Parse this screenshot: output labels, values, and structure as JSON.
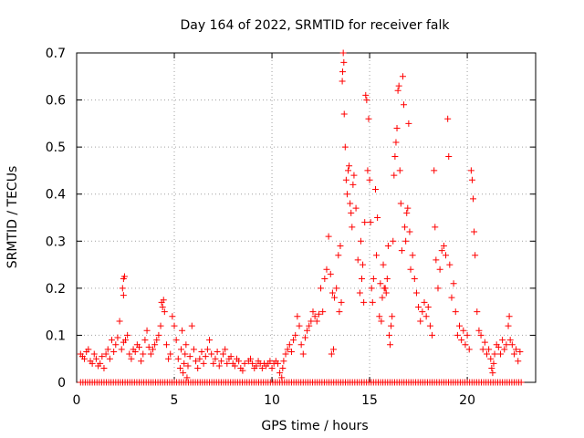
{
  "chart_data": {
    "type": "scatter",
    "title": "Day 164 of 2022, SRMTID for receiver falk",
    "xlabel": "GPS time / hours",
    "ylabel": "SRMTID / TECUs",
    "xlim": [
      0,
      23.5
    ],
    "ylim": [
      0,
      0.7
    ],
    "xticks": [
      0,
      5,
      10,
      15,
      20
    ],
    "xtick_labels": [
      "0",
      "5",
      "10",
      "15",
      "20"
    ],
    "yticks": [
      0,
      0.1,
      0.2,
      0.3,
      0.4,
      0.5,
      0.6,
      0.7
    ],
    "ytick_labels": [
      "0",
      "0.1",
      "0.2",
      "0.3",
      "0.4",
      "0.5",
      "0.6",
      "0.7"
    ],
    "grid": true,
    "marker": "+",
    "color": "#ff0000",
    "series": [
      {
        "name": "SRMTID",
        "points": [
          [
            0.2,
            0.06
          ],
          [
            0.3,
            0.055
          ],
          [
            0.4,
            0.05
          ],
          [
            0.5,
            0.065
          ],
          [
            0.6,
            0.07
          ],
          [
            0.7,
            0.045
          ],
          [
            0.8,
            0.04
          ],
          [
            0.9,
            0.06
          ],
          [
            1.0,
            0.05
          ],
          [
            1.1,
            0.035
          ],
          [
            1.2,
            0.04
          ],
          [
            1.3,
            0.055
          ],
          [
            1.4,
            0.03
          ],
          [
            1.5,
            0.06
          ],
          [
            1.6,
            0.07
          ],
          [
            1.7,
            0.05
          ],
          [
            1.8,
            0.09
          ],
          [
            1.9,
            0.065
          ],
          [
            2.0,
            0.08
          ],
          [
            2.1,
            0.095
          ],
          [
            2.2,
            0.13
          ],
          [
            2.3,
            0.07
          ],
          [
            2.4,
            0.085
          ],
          [
            2.5,
            0.09
          ],
          [
            2.6,
            0.1
          ],
          [
            2.35,
            0.2
          ],
          [
            2.4,
            0.22
          ],
          [
            2.4,
            0.185
          ],
          [
            2.45,
            0.225
          ],
          [
            2.7,
            0.06
          ],
          [
            2.8,
            0.05
          ],
          [
            2.9,
            0.07
          ],
          [
            3.0,
            0.065
          ],
          [
            3.1,
            0.08
          ],
          [
            3.2,
            0.075
          ],
          [
            3.3,
            0.045
          ],
          [
            3.4,
            0.06
          ],
          [
            3.5,
            0.09
          ],
          [
            3.6,
            0.11
          ],
          [
            3.7,
            0.075
          ],
          [
            3.8,
            0.06
          ],
          [
            3.9,
            0.07
          ],
          [
            4.0,
            0.08
          ],
          [
            4.1,
            0.09
          ],
          [
            4.2,
            0.1
          ],
          [
            4.3,
            0.12
          ],
          [
            4.35,
            0.17
          ],
          [
            4.4,
            0.16
          ],
          [
            4.45,
            0.175
          ],
          [
            4.5,
            0.15
          ],
          [
            4.6,
            0.08
          ],
          [
            4.7,
            0.05
          ],
          [
            4.8,
            0.06
          ],
          [
            4.9,
            0.14
          ],
          [
            5.0,
            0.12
          ],
          [
            5.1,
            0.09
          ],
          [
            5.2,
            0.05
          ],
          [
            5.3,
            0.03
          ],
          [
            5.35,
            0.07
          ],
          [
            5.4,
            0.11
          ],
          [
            5.45,
            0.02
          ],
          [
            5.5,
            0.04
          ],
          [
            5.55,
            0.06
          ],
          [
            5.6,
            0.08
          ],
          [
            5.65,
            0.01
          ],
          [
            5.7,
            0.035
          ],
          [
            5.8,
            0.055
          ],
          [
            5.9,
            0.12
          ],
          [
            6.0,
            0.07
          ],
          [
            6.1,
            0.045
          ],
          [
            6.2,
            0.03
          ],
          [
            6.3,
            0.05
          ],
          [
            6.4,
            0.065
          ],
          [
            6.5,
            0.04
          ],
          [
            6.6,
            0.055
          ],
          [
            6.7,
            0.07
          ],
          [
            6.8,
            0.09
          ],
          [
            6.9,
            0.06
          ],
          [
            7.0,
            0.04
          ],
          [
            7.1,
            0.05
          ],
          [
            7.2,
            0.065
          ],
          [
            7.3,
            0.035
          ],
          [
            7.4,
            0.045
          ],
          [
            7.5,
            0.06
          ],
          [
            7.6,
            0.07
          ],
          [
            7.7,
            0.04
          ],
          [
            7.8,
            0.05
          ],
          [
            7.9,
            0.055
          ],
          [
            8.0,
            0.04
          ],
          [
            8.1,
            0.035
          ],
          [
            8.2,
            0.05
          ],
          [
            8.3,
            0.045
          ],
          [
            8.4,
            0.03
          ],
          [
            8.5,
            0.025
          ],
          [
            8.6,
            0.04
          ],
          [
            8.8,
            0.045
          ],
          [
            8.9,
            0.05
          ],
          [
            9.0,
            0.04
          ],
          [
            9.1,
            0.03
          ],
          [
            9.2,
            0.035
          ],
          [
            9.3,
            0.045
          ],
          [
            9.4,
            0.04
          ],
          [
            9.5,
            0.03
          ],
          [
            9.6,
            0.04
          ],
          [
            9.7,
            0.035
          ],
          [
            9.8,
            0.04
          ],
          [
            9.9,
            0.045
          ],
          [
            10.0,
            0.03
          ],
          [
            10.1,
            0.04
          ],
          [
            10.2,
            0.045
          ],
          [
            10.3,
            0.04
          ],
          [
            10.4,
            0.02
          ],
          [
            10.5,
            0.01
          ],
          [
            10.55,
            0.03
          ],
          [
            10.6,
            0.045
          ],
          [
            10.7,
            0.06
          ],
          [
            10.8,
            0.07
          ],
          [
            10.9,
            0.08
          ],
          [
            11.0,
            0.065
          ],
          [
            11.1,
            0.09
          ],
          [
            11.2,
            0.1
          ],
          [
            11.3,
            0.14
          ],
          [
            11.4,
            0.12
          ],
          [
            11.5,
            0.08
          ],
          [
            11.6,
            0.06
          ],
          [
            11.7,
            0.095
          ],
          [
            11.8,
            0.11
          ],
          [
            11.9,
            0.12
          ],
          [
            12.0,
            0.13
          ],
          [
            12.1,
            0.15
          ],
          [
            12.2,
            0.14
          ],
          [
            12.3,
            0.13
          ],
          [
            12.4,
            0.145
          ],
          [
            12.5,
            0.2
          ],
          [
            12.6,
            0.15
          ],
          [
            12.7,
            0.22
          ],
          [
            12.8,
            0.24
          ],
          [
            12.9,
            0.31
          ],
          [
            13.0,
            0.23
          ],
          [
            13.05,
            0.06
          ],
          [
            13.1,
            0.19
          ],
          [
            13.15,
            0.07
          ],
          [
            13.2,
            0.18
          ],
          [
            13.3,
            0.2
          ],
          [
            13.4,
            0.27
          ],
          [
            13.45,
            0.15
          ],
          [
            13.5,
            0.29
          ],
          [
            13.55,
            0.17
          ],
          [
            13.6,
            0.64
          ],
          [
            13.62,
            0.66
          ],
          [
            13.65,
            0.7
          ],
          [
            13.68,
            0.68
          ],
          [
            13.7,
            0.57
          ],
          [
            13.75,
            0.5
          ],
          [
            13.8,
            0.43
          ],
          [
            13.85,
            0.4
          ],
          [
            13.9,
            0.45
          ],
          [
            13.95,
            0.46
          ],
          [
            14.0,
            0.38
          ],
          [
            14.05,
            0.36
          ],
          [
            14.1,
            0.33
          ],
          [
            14.15,
            0.42
          ],
          [
            14.2,
            0.44
          ],
          [
            14.3,
            0.37
          ],
          [
            14.4,
            0.26
          ],
          [
            14.5,
            0.19
          ],
          [
            14.55,
            0.3
          ],
          [
            14.6,
            0.22
          ],
          [
            14.65,
            0.25
          ],
          [
            14.7,
            0.17
          ],
          [
            14.75,
            0.34
          ],
          [
            14.8,
            0.61
          ],
          [
            14.85,
            0.6
          ],
          [
            14.9,
            0.45
          ],
          [
            14.95,
            0.56
          ],
          [
            15.0,
            0.43
          ],
          [
            15.05,
            0.34
          ],
          [
            15.1,
            0.2
          ],
          [
            15.15,
            0.17
          ],
          [
            15.2,
            0.22
          ],
          [
            15.3,
            0.41
          ],
          [
            15.35,
            0.27
          ],
          [
            15.4,
            0.35
          ],
          [
            15.5,
            0.14
          ],
          [
            15.55,
            0.21
          ],
          [
            15.6,
            0.13
          ],
          [
            15.65,
            0.18
          ],
          [
            15.7,
            0.25
          ],
          [
            15.75,
            0.2
          ],
          [
            15.8,
            0.2
          ],
          [
            15.85,
            0.19
          ],
          [
            15.9,
            0.22
          ],
          [
            15.95,
            0.29
          ],
          [
            16.0,
            0.1
          ],
          [
            16.05,
            0.08
          ],
          [
            16.1,
            0.12
          ],
          [
            16.15,
            0.14
          ],
          [
            16.2,
            0.3
          ],
          [
            16.25,
            0.44
          ],
          [
            16.3,
            0.48
          ],
          [
            16.35,
            0.51
          ],
          [
            16.4,
            0.54
          ],
          [
            16.45,
            0.62
          ],
          [
            16.5,
            0.63
          ],
          [
            16.55,
            0.45
          ],
          [
            16.6,
            0.38
          ],
          [
            16.65,
            0.28
          ],
          [
            16.7,
            0.65
          ],
          [
            16.75,
            0.59
          ],
          [
            16.8,
            0.33
          ],
          [
            16.85,
            0.3
          ],
          [
            16.9,
            0.36
          ],
          [
            16.95,
            0.37
          ],
          [
            17.0,
            0.55
          ],
          [
            17.05,
            0.32
          ],
          [
            17.1,
            0.24
          ],
          [
            17.2,
            0.27
          ],
          [
            17.3,
            0.22
          ],
          [
            17.4,
            0.19
          ],
          [
            17.5,
            0.16
          ],
          [
            17.6,
            0.13
          ],
          [
            17.7,
            0.15
          ],
          [
            17.8,
            0.17
          ],
          [
            17.9,
            0.14
          ],
          [
            18.0,
            0.16
          ],
          [
            18.1,
            0.12
          ],
          [
            18.2,
            0.1
          ],
          [
            18.3,
            0.45
          ],
          [
            18.35,
            0.33
          ],
          [
            18.4,
            0.26
          ],
          [
            18.5,
            0.2
          ],
          [
            18.6,
            0.24
          ],
          [
            18.7,
            0.28
          ],
          [
            18.8,
            0.29
          ],
          [
            18.9,
            0.27
          ],
          [
            19.0,
            0.56
          ],
          [
            19.05,
            0.48
          ],
          [
            19.1,
            0.25
          ],
          [
            19.2,
            0.18
          ],
          [
            19.3,
            0.21
          ],
          [
            19.4,
            0.15
          ],
          [
            19.5,
            0.1
          ],
          [
            19.6,
            0.12
          ],
          [
            19.7,
            0.09
          ],
          [
            19.8,
            0.11
          ],
          [
            19.9,
            0.08
          ],
          [
            20.0,
            0.1
          ],
          [
            20.1,
            0.07
          ],
          [
            20.2,
            0.45
          ],
          [
            20.25,
            0.43
          ],
          [
            20.3,
            0.39
          ],
          [
            20.35,
            0.32
          ],
          [
            20.4,
            0.27
          ],
          [
            20.5,
            0.15
          ],
          [
            20.6,
            0.11
          ],
          [
            20.7,
            0.1
          ],
          [
            20.8,
            0.07
          ],
          [
            20.9,
            0.085
          ],
          [
            21.0,
            0.06
          ],
          [
            21.1,
            0.07
          ],
          [
            21.2,
            0.05
          ],
          [
            21.25,
            0.03
          ],
          [
            21.3,
            0.02
          ],
          [
            21.35,
            0.04
          ],
          [
            21.4,
            0.06
          ],
          [
            21.5,
            0.08
          ],
          [
            21.6,
            0.075
          ],
          [
            21.7,
            0.06
          ],
          [
            21.8,
            0.09
          ],
          [
            21.9,
            0.07
          ],
          [
            22.0,
            0.08
          ],
          [
            22.1,
            0.12
          ],
          [
            22.15,
            0.14
          ],
          [
            22.2,
            0.09
          ],
          [
            22.3,
            0.08
          ],
          [
            22.4,
            0.06
          ],
          [
            22.5,
            0.07
          ],
          [
            22.6,
            0.045
          ],
          [
            22.7,
            0.065
          ]
        ]
      },
      {
        "name": "SRMTID baseline",
        "x_range": [
          0.2,
          22.8
        ],
        "x_step": 0.12,
        "y": 0.0
      }
    ]
  }
}
